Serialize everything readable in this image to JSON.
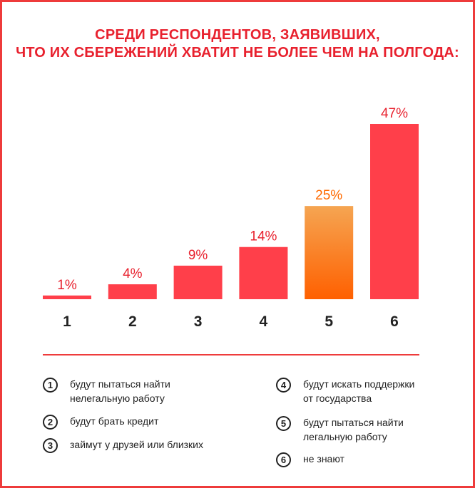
{
  "title": {
    "line1": "СРЕДИ РЕСПОНДЕНТОВ, ЗАЯВИВШИХ,",
    "line2": "ЧТО ИХ СБЕРЕЖЕНИЙ ХВАТИТ НЕ БОЛЕЕ  ЧЕМ НА ПОЛГОДА:"
  },
  "colors": {
    "accent": "#e8212e",
    "bar": "#ff3f4a",
    "highlight_top": "#f5a552",
    "highlight_bottom": "#ff6000",
    "highlight_label": "#ff6a00",
    "text": "#222222"
  },
  "chart_data": {
    "type": "bar",
    "categories": [
      "1",
      "2",
      "3",
      "4",
      "5",
      "6"
    ],
    "values": [
      1,
      4,
      9,
      14,
      25,
      47
    ],
    "value_labels": [
      "1%",
      "4%",
      "9%",
      "14%",
      "25%",
      "47%"
    ],
    "highlighted_category": "5",
    "title": "СРЕДИ РЕСПОНДЕНТОВ, ЗАЯВИВШИХ, ЧТО ИХ СБЕРЕЖЕНИЙ ХВАТИТ НЕ БОЛЕЕ  ЧЕМ НА ПОЛГОДА:",
    "xlabel": "",
    "ylabel": "",
    "ylim": [
      0,
      47
    ],
    "grid": false,
    "legend": "bottom"
  },
  "legend": [
    {
      "num": "1",
      "text": "будут пытаться найти\nнелегальную работу"
    },
    {
      "num": "2",
      "text": "будут брать кредит"
    },
    {
      "num": "3",
      "text": "займут у друзей или близких"
    },
    {
      "num": "4",
      "text": "будут искать поддержки\nот государства"
    },
    {
      "num": "5",
      "text": "будут пытаться найти\nлегальную работу"
    },
    {
      "num": "6",
      "text": "не знают"
    }
  ]
}
